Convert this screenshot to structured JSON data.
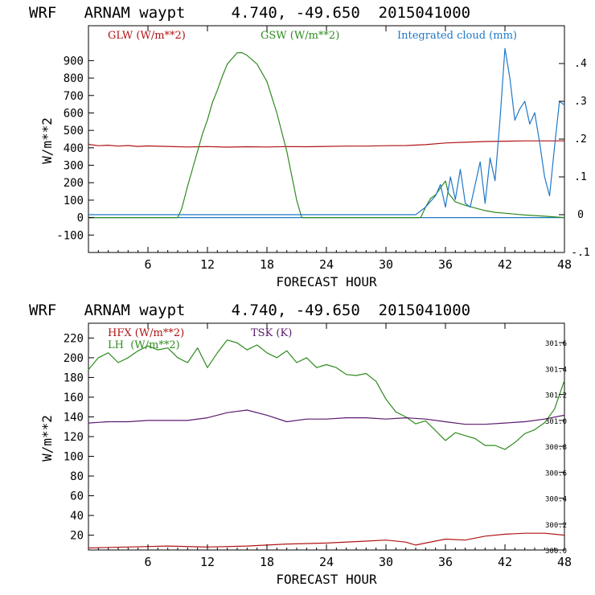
{
  "colors": {
    "glw": "#b01414",
    "gsw": "#2e8b1e",
    "cloud": "#1f78c8",
    "hfx": "#b01414",
    "lh": "#2e8b1e",
    "tsk": "#5a1a6e",
    "axis": "#000000"
  },
  "chart_data": [
    {
      "type": "line",
      "title": "WRF   ARNAM waypt     4.740, -49.650  2015041000",
      "xlabel": "FORECAST HOUR",
      "ylabel": "W/m**2",
      "xlim": [
        0,
        48
      ],
      "ylim": [
        -200,
        1100
      ],
      "y2lim": [
        -0.1,
        0.5
      ],
      "x_ticks": [
        6,
        12,
        18,
        24,
        30,
        36,
        42,
        48
      ],
      "x_tick_labels": [
        "6",
        "12",
        "18",
        "24",
        "30",
        "36",
        "42",
        "48"
      ],
      "y_ticks": [
        -100,
        0,
        100,
        200,
        300,
        400,
        500,
        600,
        700,
        800,
        900
      ],
      "y_tick_labels": [
        "-100",
        "0",
        "100",
        "200",
        "300",
        "400",
        "500",
        "600",
        "700",
        "800",
        "900"
      ],
      "y2_ticks": [
        -0.1,
        0,
        0.1,
        0.2,
        0.3,
        0.4
      ],
      "y2_tick_labels": [
        "-.1",
        "0",
        ".1",
        ".2",
        ".3",
        ".4"
      ],
      "legend": [
        "GLW (W/m**2)",
        "GSW (W/m**2)",
        "Integrated cloud (mm)"
      ],
      "series": [
        {
          "name": "GLW (W/m**2)",
          "axis": "left",
          "color_key": "glw",
          "x": [
            0,
            1,
            2,
            3,
            4,
            5,
            6,
            8,
            10,
            12,
            14,
            16,
            18,
            20,
            22,
            24,
            26,
            28,
            30,
            32,
            34,
            36,
            38,
            40,
            42,
            44,
            46,
            48
          ],
          "y": [
            420,
            412,
            415,
            410,
            413,
            408,
            411,
            408,
            405,
            407,
            404,
            406,
            405,
            407,
            406,
            408,
            410,
            410,
            412,
            413,
            418,
            428,
            432,
            436,
            438,
            440,
            440,
            440
          ]
        },
        {
          "name": "GSW (W/m**2)",
          "axis": "left",
          "color_key": "gsw",
          "x": [
            0,
            9,
            9.4,
            10,
            10.6,
            11,
            11.5,
            12,
            12.5,
            13,
            13.5,
            14,
            14.3,
            15,
            15.5,
            16,
            17,
            18,
            19,
            20,
            21,
            21.5,
            33.5,
            34,
            34.5,
            35,
            35.5,
            36,
            36.3,
            37,
            38,
            39,
            40,
            41,
            42,
            44,
            46,
            48
          ],
          "y": [
            0,
            0,
            50,
            180,
            300,
            380,
            480,
            560,
            660,
            730,
            810,
            880,
            900,
            945,
            945,
            930,
            880,
            780,
            600,
            380,
            100,
            0,
            0,
            60,
            110,
            130,
            170,
            210,
            140,
            90,
            70,
            55,
            40,
            30,
            25,
            15,
            8,
            0
          ]
        },
        {
          "name": "Integrated cloud (mm)",
          "axis": "right",
          "color_key": "cloud",
          "x": [
            0,
            33,
            34,
            35,
            35.5,
            36,
            36.5,
            37,
            37.5,
            38,
            38.5,
            39,
            39.5,
            40,
            40.5,
            41,
            41.5,
            42,
            42.5,
            43,
            43.5,
            44,
            44.5,
            45,
            45.5,
            46,
            46.5,
            47,
            47.5,
            48
          ],
          "y": [
            0,
            0,
            0.02,
            0.05,
            0.08,
            0.02,
            0.1,
            0.04,
            0.12,
            0.03,
            0.02,
            0.08,
            0.14,
            0.03,
            0.15,
            0.09,
            0.25,
            0.44,
            0.36,
            0.25,
            0.28,
            0.3,
            0.24,
            0.27,
            0.19,
            0.1,
            0.05,
            0.18,
            0.3,
            0.29
          ]
        }
      ]
    },
    {
      "type": "line",
      "title": "WRF   ARNAM waypt     4.740, -49.650  2015041000",
      "xlabel": "FORECAST HOUR",
      "ylabel": "W/m**2",
      "xlim": [
        0,
        48
      ],
      "ylim": [
        5,
        235
      ],
      "y2lim": [
        300.0,
        301.75
      ],
      "x_ticks": [
        6,
        12,
        18,
        24,
        30,
        36,
        42,
        48
      ],
      "x_tick_labels": [
        "6",
        "12",
        "18",
        "24",
        "30",
        "36",
        "42",
        "48"
      ],
      "y_ticks": [
        20,
        40,
        60,
        80,
        100,
        120,
        140,
        160,
        180,
        200,
        220
      ],
      "y_tick_labels": [
        "20",
        "40",
        "60",
        "80",
        "100",
        "120",
        "140",
        "160",
        "180",
        "200",
        "220"
      ],
      "y2_ticks": [
        300.0,
        300.2,
        300.4,
        300.6,
        300.8,
        301.0,
        301.2,
        301.4,
        301.6
      ],
      "y2_tick_labels": [
        "300.0",
        "300.2",
        "300.4",
        "300.6",
        "300.8",
        "301.0",
        "301.2",
        "301.4",
        "301.6"
      ],
      "legend": [
        "HFX (W/m**2)",
        "LH  (W/m**2)",
        "TSK (K)"
      ],
      "series": [
        {
          "name": "HFX (W/m**2)",
          "axis": "left",
          "color_key": "hfx",
          "x": [
            0,
            4,
            8,
            12,
            16,
            20,
            24,
            28,
            30,
            32,
            33,
            34,
            36,
            38,
            40,
            42,
            44,
            46,
            48
          ],
          "y": [
            7,
            8,
            9,
            8,
            9,
            11,
            12,
            14,
            15,
            13,
            10,
            12,
            16,
            15,
            19,
            21,
            22,
            22,
            20
          ]
        },
        {
          "name": "LH  (W/m**2)",
          "axis": "left",
          "color_key": "lh",
          "x": [
            0,
            1,
            2,
            3,
            4,
            5,
            6,
            7,
            8,
            9,
            10,
            11,
            12,
            13,
            14,
            15,
            16,
            17,
            18,
            19,
            20,
            21,
            22,
            23,
            24,
            25,
            26,
            27,
            28,
            29,
            30,
            31,
            32,
            33,
            34,
            35,
            36,
            37,
            38,
            39,
            40,
            41,
            42,
            43,
            44,
            45,
            46,
            47,
            48
          ],
          "y": [
            188,
            200,
            205,
            195,
            200,
            207,
            212,
            208,
            210,
            200,
            195,
            210,
            190,
            205,
            218,
            215,
            208,
            213,
            205,
            200,
            207,
            195,
            200,
            190,
            193,
            190,
            183,
            182,
            184,
            176,
            158,
            145,
            140,
            133,
            136,
            126,
            116,
            124,
            121,
            118,
            111,
            111,
            107,
            114,
            123,
            127,
            134,
            148,
            177
          ]
        },
        {
          "name": "TSK (K)",
          "axis": "right",
          "color_key": "tsk",
          "x": [
            0,
            2,
            4,
            6,
            8,
            10,
            12,
            14,
            16,
            18,
            20,
            22,
            24,
            26,
            28,
            30,
            32,
            34,
            36,
            38,
            40,
            42,
            44,
            46,
            48
          ],
          "y": [
            300.98,
            300.99,
            300.99,
            301.0,
            301.0,
            301.0,
            301.02,
            301.06,
            301.08,
            301.04,
            300.99,
            301.01,
            301.01,
            301.02,
            301.02,
            301.01,
            301.02,
            301.01,
            300.99,
            300.97,
            300.97,
            300.98,
            300.99,
            301.01,
            301.04
          ]
        }
      ]
    }
  ]
}
